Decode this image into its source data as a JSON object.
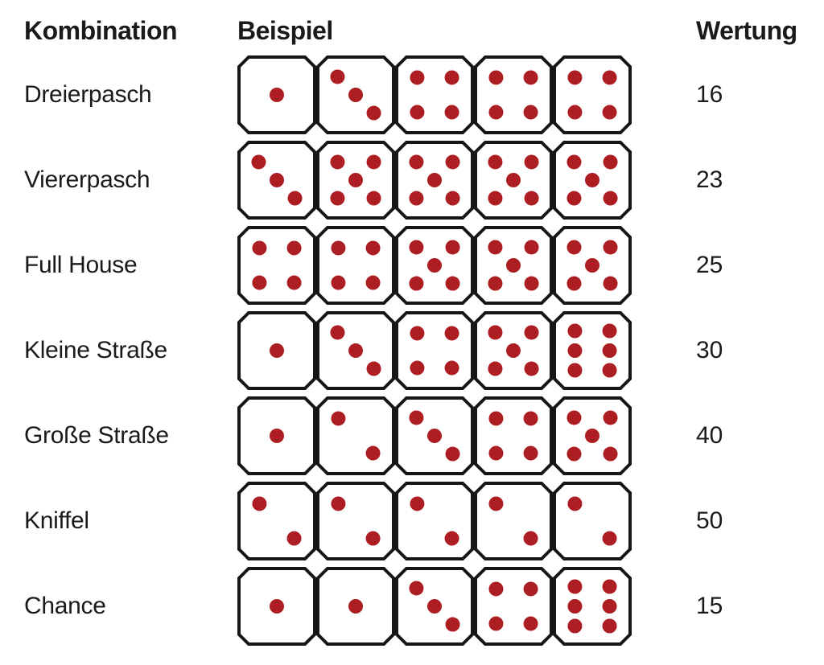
{
  "headers": {
    "combination": "Kombination",
    "example": "Beispiel",
    "score": "Wertung"
  },
  "dieStyle": {
    "size": 98,
    "stroke": "#161616",
    "strokeWidth": 4,
    "pipColor": "#ad1e23",
    "pipRadius": 9,
    "cornerCut": 12,
    "background": "#ffffff"
  },
  "rows": [
    {
      "label": "Dreierpasch",
      "dice": [
        1,
        3,
        4,
        4,
        4
      ],
      "score": "16"
    },
    {
      "label": "Viererpasch",
      "dice": [
        3,
        5,
        5,
        5,
        5
      ],
      "score": "23"
    },
    {
      "label": "Full House",
      "dice": [
        4,
        4,
        5,
        5,
        5
      ],
      "score": "25"
    },
    {
      "label": "Kleine Straße",
      "dice": [
        1,
        3,
        4,
        5,
        6
      ],
      "score": "30"
    },
    {
      "label": "Große Straße",
      "dice": [
        1,
        2,
        3,
        4,
        5
      ],
      "score": "40"
    },
    {
      "label": "Kniffel",
      "dice": [
        2,
        2,
        2,
        2,
        2
      ],
      "score": "50"
    },
    {
      "label": "Chance",
      "dice": [
        1,
        1,
        3,
        4,
        6
      ],
      "score": "15"
    }
  ],
  "pipPositions": {
    "1": [
      [
        50,
        50
      ]
    ],
    "2": [
      [
        28,
        28
      ],
      [
        72,
        72
      ]
    ],
    "3": [
      [
        27,
        27
      ],
      [
        50,
        50
      ],
      [
        73,
        73
      ]
    ],
    "4": [
      [
        28,
        28
      ],
      [
        72,
        28
      ],
      [
        28,
        72
      ],
      [
        72,
        72
      ]
    ],
    "5": [
      [
        27,
        27
      ],
      [
        73,
        27
      ],
      [
        50,
        50
      ],
      [
        27,
        73
      ],
      [
        73,
        73
      ]
    ],
    "6": [
      [
        28,
        25
      ],
      [
        72,
        25
      ],
      [
        28,
        50
      ],
      [
        72,
        50
      ],
      [
        28,
        75
      ],
      [
        72,
        75
      ]
    ]
  }
}
